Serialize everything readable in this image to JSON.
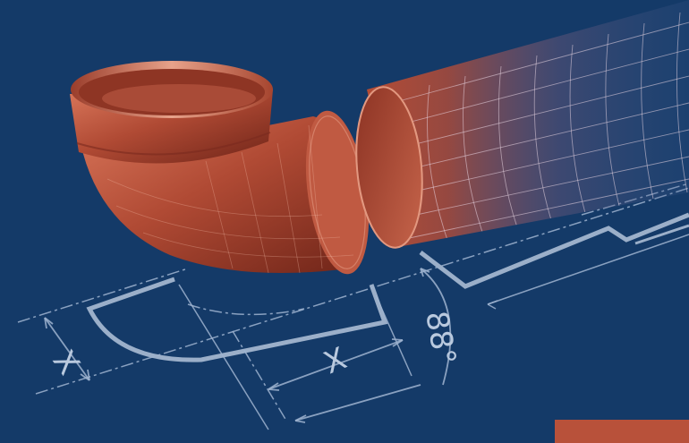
{
  "scene": {
    "description_free": true,
    "colors": {
      "background": "#143a68",
      "pipe": "#b8513a",
      "pipe_dark": "#7a2a1e",
      "pipe_light": "#e08a6e",
      "drawing_lines": "#9fb4d0",
      "accent_bar": "#b8513a"
    },
    "dimensions": {
      "x_label_left": "X",
      "x_label_center": "X",
      "angle_label": "88°"
    },
    "icons": [
      "pipe-elbow",
      "straight-pipe",
      "technical-drawing"
    ]
  }
}
